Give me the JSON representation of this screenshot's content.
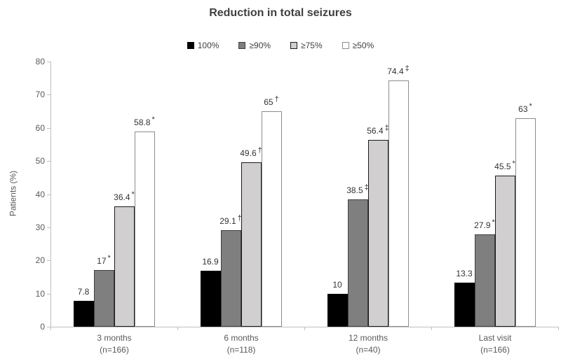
{
  "chart_data": {
    "type": "bar",
    "title": "Reduction in total seizures",
    "ylabel": "Patients (%)",
    "ylim": [
      0,
      80
    ],
    "yticks": [
      "0",
      "10",
      "20",
      "30",
      "40",
      "50",
      "60",
      "70",
      "80"
    ],
    "grid": false,
    "legend_position": "top-center",
    "categories": [
      "3 months",
      "6 months",
      "12 months",
      "Last visit"
    ],
    "category_sublabels": [
      "(n=166)",
      "(n=118)",
      "(n=40)",
      "(n=166)"
    ],
    "series": [
      {
        "name": "100%",
        "fill": "#000000",
        "border": "#000000",
        "values": [
          7.8,
          16.9,
          10,
          13.3
        ],
        "value_labels": [
          "7.8",
          "16.9",
          "10",
          "13.3"
        ],
        "markers": [
          "",
          "",
          "",
          ""
        ]
      },
      {
        "name": "≥90%",
        "fill": "#7f7f7f",
        "border": "#3f3f3f",
        "values": [
          17,
          29.1,
          38.5,
          27.9
        ],
        "value_labels": [
          "17",
          "29.1",
          "38.5",
          "27.9"
        ],
        "markers": [
          "*",
          "†",
          "‡",
          "*"
        ]
      },
      {
        "name": "≥75%",
        "fill": "#d1cfcf",
        "border": "#1a1a1a",
        "values": [
          36.4,
          49.6,
          56.4,
          45.5
        ],
        "value_labels": [
          "36.4",
          "49.6",
          "56.4",
          "45.5"
        ],
        "markers": [
          "*",
          "†",
          "‡",
          "*"
        ]
      },
      {
        "name": "≥50%",
        "fill": "#ffffff",
        "border": "#8c8c8c",
        "values": [
          58.8,
          65,
          74.4,
          63
        ],
        "value_labels": [
          "58.8",
          "65",
          "74.4",
          "63"
        ],
        "markers": [
          "*",
          "†",
          "‡",
          "*"
        ]
      }
    ]
  },
  "colors": {
    "title": "#404040",
    "axis_text": "#595959",
    "value_text": "#333333",
    "axis_line": "#bfbfbf",
    "background": "#ffffff"
  }
}
